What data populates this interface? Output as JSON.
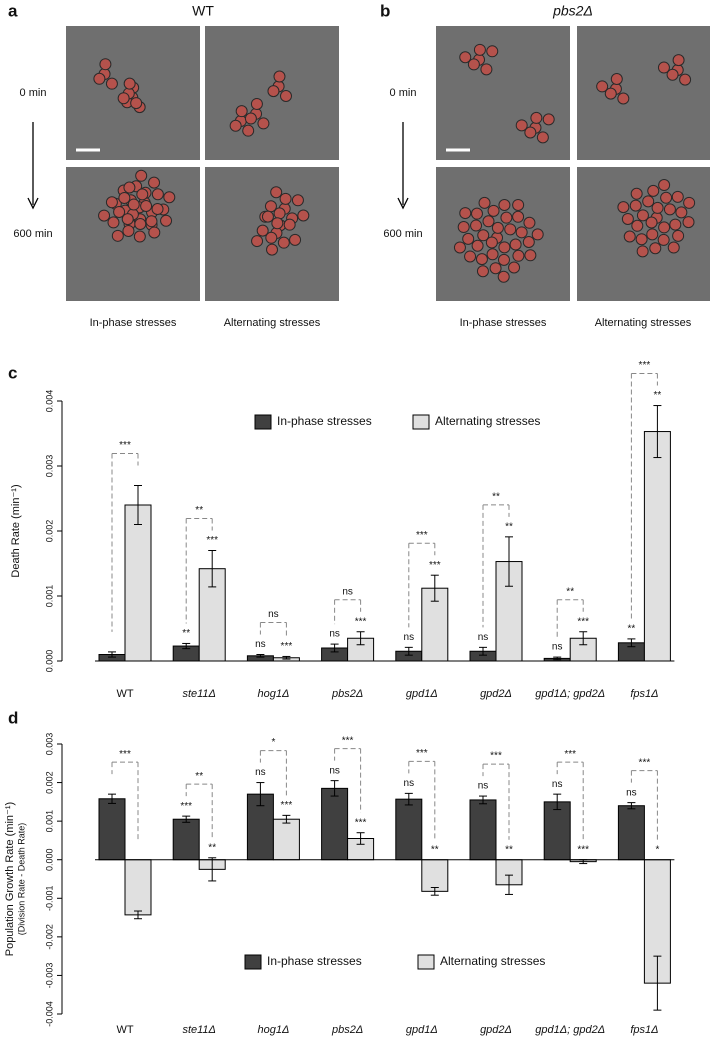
{
  "panel_a": {
    "label": "a",
    "title": "WT",
    "time_start": "0 min",
    "time_end": "600 min",
    "columns": [
      "In-phase stresses",
      "Alternating stresses"
    ]
  },
  "panel_b": {
    "label": "b",
    "title": "pbs2Δ",
    "time_start": "0 min",
    "time_end": "600 min",
    "columns": [
      "In-phase stresses",
      "Alternating stresses"
    ]
  },
  "chart_data": [
    {
      "type": "bar",
      "panel_label": "c",
      "ylabel": "Death Rate (min⁻¹)",
      "categories": [
        "WT",
        "ste11Δ",
        "hog1Δ",
        "pbs2Δ",
        "gpd1Δ",
        "gpd2Δ",
        "gpd1Δ; gpd2Δ",
        "fps1Δ"
      ],
      "series": [
        {
          "name": "In-phase stresses",
          "color": "#404040",
          "values": [
            0.0001,
            0.00023,
            8e-05,
            0.0002,
            0.00015,
            0.00015,
            4e-05,
            0.00028
          ],
          "errors": [
            4e-05,
            4e-05,
            2e-05,
            6e-05,
            6e-05,
            6e-05,
            2e-05,
            6e-05
          ],
          "significance": [
            null,
            "**",
            "ns",
            "ns",
            "ns",
            "ns",
            "ns",
            "**"
          ]
        },
        {
          "name": "Alternating stresses",
          "color": "#e0e0e0",
          "values": [
            0.0024,
            0.00142,
            5e-05,
            0.00035,
            0.00112,
            0.00153,
            0.00035,
            0.00353
          ],
          "errors": [
            0.0003,
            0.00028,
            2e-05,
            0.0001,
            0.0002,
            0.00038,
            0.0001,
            0.0004
          ],
          "significance": [
            null,
            "***",
            "***",
            "***",
            "***",
            "**",
            "***",
            "**"
          ]
        }
      ],
      "pair_significance": [
        "***",
        "**",
        "ns",
        "ns",
        "***",
        "**",
        "**",
        "***"
      ],
      "ylim": [
        0,
        0.004
      ],
      "yticks": [
        {
          "value": 0,
          "label": "0.000"
        },
        {
          "value": 0.001,
          "label": "0.001"
        },
        {
          "value": 0.002,
          "label": "0.002"
        },
        {
          "value": 0.003,
          "label": "0.003"
        },
        {
          "value": 0.004,
          "label": "0.004"
        }
      ],
      "legend": "top"
    },
    {
      "type": "bar",
      "panel_label": "d",
      "ylabel": "Population Growth Rate (min⁻¹)",
      "ysublabel": "(Division Rate - Death Rate)",
      "categories": [
        "WT",
        "ste11Δ",
        "hog1Δ",
        "pbs2Δ",
        "gpd1Δ",
        "gpd2Δ",
        "gpd1Δ; gpd2Δ",
        "fps1Δ"
      ],
      "series": [
        {
          "name": "In-phase stresses",
          "color": "#404040",
          "values": [
            0.00158,
            0.00105,
            0.0017,
            0.00185,
            0.00157,
            0.00155,
            0.0015,
            0.0014
          ],
          "errors": [
            0.00012,
            8e-05,
            0.0003,
            0.0002,
            0.00015,
            0.0001,
            0.0002,
            8e-05
          ],
          "significance": [
            null,
            "***",
            "ns",
            "ns",
            "ns",
            "ns",
            "ns",
            "ns"
          ]
        },
        {
          "name": "Alternating stresses",
          "color": "#e0e0e0",
          "values": [
            -0.00143,
            -0.00025,
            0.00105,
            0.00055,
            -0.00082,
            -0.00065,
            -5e-05,
            -0.0032
          ],
          "errors": [
            0.0001,
            0.0003,
            0.0001,
            0.00015,
            0.0001,
            0.00025,
            5e-05,
            0.0007
          ],
          "significance": [
            null,
            "**",
            "***",
            "***",
            "**",
            "**",
            "***",
            "*"
          ]
        }
      ],
      "pair_significance": [
        "***",
        "**",
        "*",
        "***",
        "***",
        "***",
        "***",
        "***"
      ],
      "ylim": [
        -0.004,
        0.003
      ],
      "yticks": [
        {
          "value": -0.004,
          "label": "-0.004"
        },
        {
          "value": -0.003,
          "label": "-0.003"
        },
        {
          "value": -0.002,
          "label": "-0.002"
        },
        {
          "value": -0.001,
          "label": "-0.001"
        },
        {
          "value": 0,
          "label": "0.000"
        },
        {
          "value": 0.001,
          "label": "0.001"
        },
        {
          "value": 0.002,
          "label": "0.002"
        },
        {
          "value": 0.003,
          "label": "0.003"
        }
      ],
      "legend": "bottom"
    }
  ]
}
